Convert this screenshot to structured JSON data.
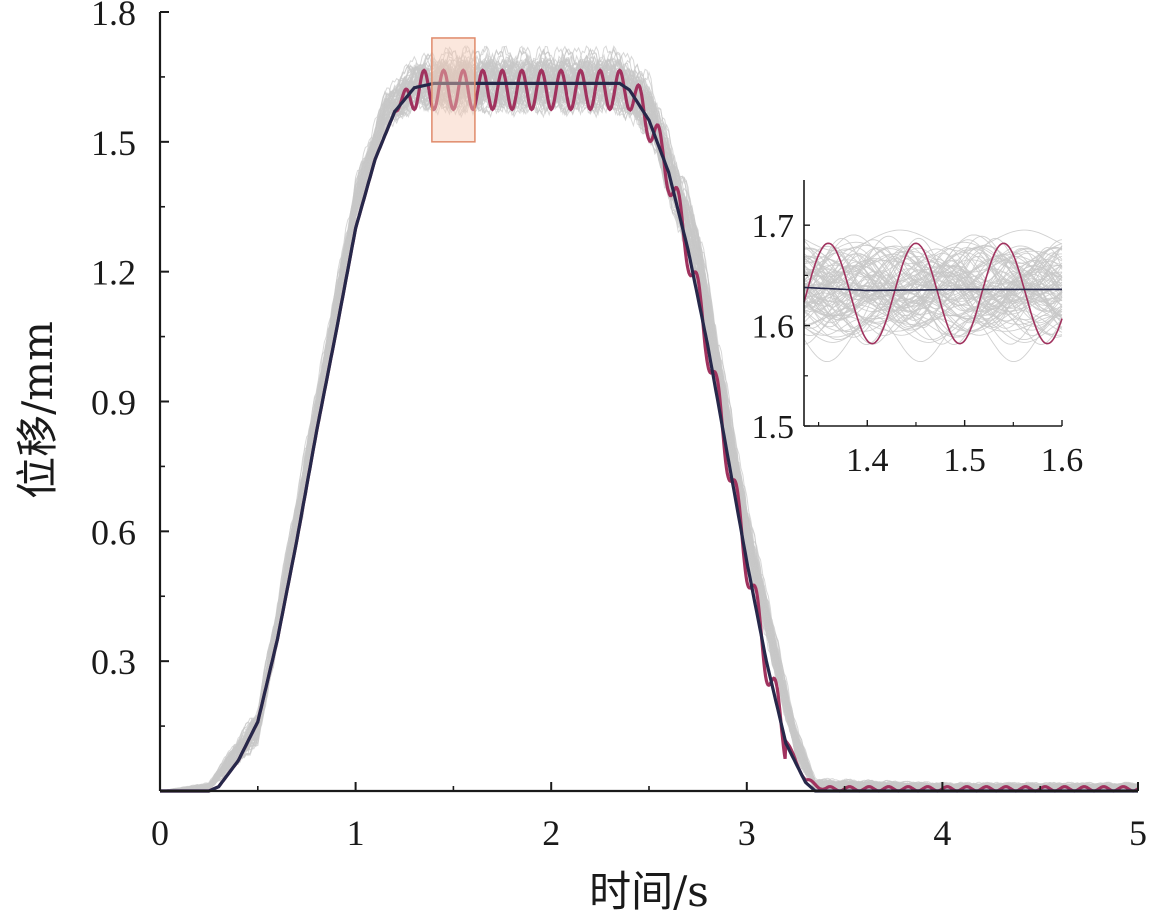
{
  "chart_data": [
    {
      "type": "line",
      "title": "",
      "xlabel": "时间/s",
      "ylabel": "位移/mm",
      "xlim": [
        0,
        5
      ],
      "ylim": [
        0,
        1.8
      ],
      "xticks": [
        0,
        1,
        2,
        3,
        4,
        5
      ],
      "xtick_labels": [
        "0",
        "1",
        "2",
        "3",
        "4",
        "5"
      ],
      "yticks": [
        0.3,
        0.6,
        0.9,
        1.2,
        1.5,
        1.8
      ],
      "ytick_labels": [
        "0.3",
        "0.6",
        "0.9",
        "1.2",
        "1.5",
        "1.8"
      ],
      "grid": false,
      "legend": "none",
      "series": [
        {
          "role": "ensemble-samples",
          "color": "#c8c8c8",
          "x": [
            0,
            0.25,
            0.5,
            0.75,
            1.0,
            1.15,
            1.3,
            1.5,
            2.0,
            2.35,
            2.5,
            2.75,
            3.0,
            3.25,
            3.35,
            4.0,
            5.0
          ],
          "band_low": [
            0,
            0,
            0.1,
            0.68,
            1.3,
            1.52,
            1.57,
            1.56,
            1.56,
            1.56,
            1.5,
            1.15,
            0.52,
            0.07,
            0,
            0,
            0
          ],
          "band_high": [
            0,
            0.02,
            0.2,
            0.82,
            1.42,
            1.62,
            1.7,
            1.72,
            1.72,
            1.72,
            1.66,
            1.33,
            0.68,
            0.16,
            0.03,
            0.02,
            0.02
          ]
        },
        {
          "role": "mean",
          "color": "#26284a",
          "x": [
            0,
            0.25,
            0.3,
            0.4,
            0.5,
            0.6,
            0.7,
            0.8,
            0.9,
            1.0,
            1.1,
            1.2,
            1.3,
            1.4,
            2.0,
            2.35,
            2.4,
            2.5,
            2.6,
            2.7,
            2.8,
            2.9,
            3.0,
            3.1,
            3.2,
            3.3,
            3.35,
            3.4,
            5.0
          ],
          "y": [
            0,
            0,
            0.01,
            0.07,
            0.16,
            0.35,
            0.58,
            0.83,
            1.06,
            1.3,
            1.46,
            1.57,
            1.625,
            1.635,
            1.635,
            1.635,
            1.62,
            1.55,
            1.43,
            1.25,
            1.03,
            0.78,
            0.53,
            0.3,
            0.11,
            0.02,
            0,
            0,
            0
          ]
        },
        {
          "role": "sample-with-oscillation",
          "color": "#a0325e",
          "x": [
            0,
            0.25,
            0.3,
            0.4,
            0.5,
            0.6,
            0.7,
            0.8,
            0.9,
            1.0,
            1.1,
            1.2,
            1.3,
            2.4,
            2.5,
            2.6,
            2.7,
            2.8,
            2.9,
            3.0,
            3.1,
            3.2,
            3.3,
            3.4,
            5.0
          ],
          "y": [
            0,
            0,
            0.01,
            0.07,
            0.16,
            0.35,
            0.58,
            0.83,
            1.06,
            1.3,
            1.46,
            1.57,
            1.62,
            1.62,
            1.55,
            1.43,
            1.25,
            1.03,
            0.78,
            0.53,
            0.3,
            0.11,
            0.02,
            0,
            0
          ],
          "oscillation_amplitude": 0.045,
          "oscillation_period_s": 0.1,
          "oscillation_start_s": 1.2,
          "oscillation_end_s": 3.2,
          "tail_oscillation_amplitude": 0.01
        }
      ],
      "highlight_box": {
        "x_range": [
          1.39,
          1.61
        ],
        "y_range": [
          1.5,
          1.74
        ],
        "stroke": "#e08a6a",
        "fill": "#f6c9b4"
      }
    },
    {
      "type": "line",
      "role": "inset-zoom",
      "title": "",
      "xlabel": "",
      "ylabel": "",
      "xlim": [
        1.335,
        1.6
      ],
      "ylim": [
        1.5,
        1.745
      ],
      "xticks": [
        1.4,
        1.5,
        1.6
      ],
      "xtick_labels": [
        "1.4",
        "1.5",
        "1.6"
      ],
      "yticks": [
        1.5,
        1.6,
        1.7
      ],
      "ytick_labels": [
        "1.5",
        "1.6",
        "1.7"
      ],
      "grid": false,
      "series": [
        {
          "role": "ensemble-samples",
          "color": "#c8c8c8",
          "center": 1.635,
          "spread": 0.045
        },
        {
          "role": "mean",
          "color": "#26284a",
          "x": [
            1.335,
            1.4,
            1.5,
            1.6
          ],
          "y": [
            1.638,
            1.635,
            1.636,
            1.636
          ]
        },
        {
          "role": "sample-with-oscillation",
          "color": "#a0325e",
          "center": 1.632,
          "amplitude": 0.05,
          "period": 0.09,
          "peak_at": 1.45
        }
      ]
    }
  ]
}
